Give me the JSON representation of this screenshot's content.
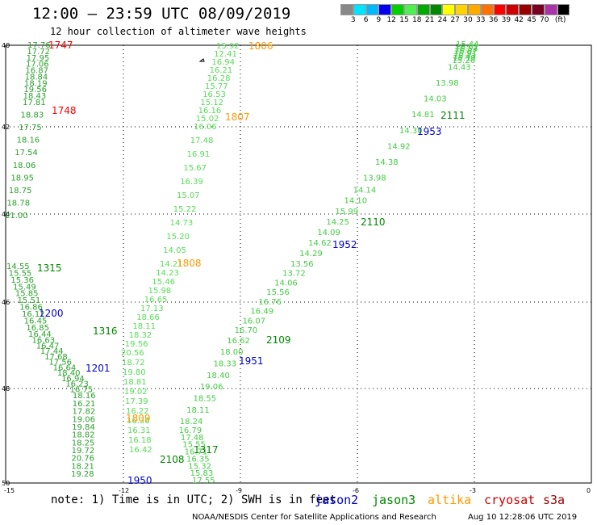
{
  "header": {
    "title": "12:00 – 23:59 UTC 08/09/2019",
    "subtitle": "12 hour collection of altimeter wave heights"
  },
  "legend": {
    "unit": "(ft)",
    "colors": [
      "#888888",
      "#00e5ff",
      "#00b8ff",
      "#0000ee",
      "#00d000",
      "#50ee50",
      "#00aa00",
      "#008800",
      "#ffff00",
      "#ffd200",
      "#ffaa00",
      "#ff7200",
      "#ff0000",
      "#cc0000",
      "#990000",
      "#770022",
      "#aa33aa",
      "#000000"
    ],
    "ticks": [
      "3",
      "6",
      "9",
      "12",
      "15",
      "18",
      "21",
      "24",
      "27",
      "30",
      "33",
      "36",
      "39",
      "42",
      "45",
      "70"
    ]
  },
  "axes": {
    "lat_labels": [
      "40",
      "42",
      "44",
      "46",
      "48",
      "50"
    ],
    "lon_labels": [
      "-15",
      "-12",
      "-9",
      "-6",
      "-3",
      "0"
    ]
  },
  "time_labels": [
    {
      "t": "1747",
      "c": "#ff0000"
    },
    {
      "t": "1748",
      "c": "#ff0000"
    },
    {
      "t": "1806",
      "c": "#ff9900"
    },
    {
      "t": "1807",
      "c": "#ff9900"
    },
    {
      "t": "1808",
      "c": "#ff9900"
    },
    {
      "t": "1809",
      "c": "#ff9900"
    },
    {
      "t": "1315",
      "c": "#008800"
    },
    {
      "t": "1316",
      "c": "#008800"
    },
    {
      "t": "1317",
      "c": "#008800"
    },
    {
      "t": "1200",
      "c": "#0000cc"
    },
    {
      "t": "1201",
      "c": "#0000cc"
    },
    {
      "t": "2111",
      "c": "#008800"
    },
    {
      "t": "2110",
      "c": "#008800"
    },
    {
      "t": "2109",
      "c": "#008800"
    },
    {
      "t": "2108",
      "c": "#008800"
    },
    {
      "t": "1953",
      "c": "#0000cc"
    },
    {
      "t": "1952",
      "c": "#0000cc"
    },
    {
      "t": "1951",
      "c": "#0000cc"
    },
    {
      "t": "1950",
      "c": "#0000cc"
    }
  ],
  "tracks": {
    "red_track": [
      "17.76",
      "17.72",
      "17.95",
      "17.06",
      "16.87",
      "18.84",
      "18.19",
      "19.56",
      "18.43",
      "17.81",
      "18.83",
      "17.75",
      "18.16",
      "17.54",
      "18.06",
      "18.95",
      "18.75",
      "18.78",
      "21.00"
    ],
    "orange_track": [
      "15.92",
      "12.41",
      "16.94",
      "16.21",
      "16.28",
      "15.77",
      "16.53",
      "15.12",
      "16.16",
      "15.02",
      "16.06",
      "17.48",
      "16.91",
      "15.67",
      "16.39",
      "15.07",
      "15.22",
      "14.73",
      "15.20",
      "14.05",
      "14.21",
      "14.23",
      "15.46",
      "15.98",
      "16.65",
      "17.13",
      "18.66",
      "18.11",
      "18.32",
      "19.56",
      "20.56",
      "18.72",
      "19.80",
      "18.81",
      "19.02",
      "17.39",
      "16.22",
      "16.36",
      "16.31",
      "16.18",
      "16.42"
    ],
    "green_track": [
      "14.55",
      "15.55",
      "15.36",
      "15.49",
      "15.85",
      "15.51",
      "16.86",
      "16.12",
      "16.45",
      "16.85",
      "16.44",
      "16.63",
      "16.47",
      "17.44",
      "17.68",
      "17.56",
      "16.64",
      "18.40",
      "16.94",
      "16.23",
      "16.75",
      "18.16",
      "16.21",
      "17.82",
      "19.06",
      "19.84",
      "18.82",
      "18.25",
      "19.72",
      "20.76",
      "18.21",
      "19.28"
    ],
    "green_track_2": [
      "17.55",
      "15.83",
      "15.32",
      "16.35",
      "16.71",
      "15.55",
      "17.48",
      "16.79",
      "18.24",
      "18.11",
      "18.55",
      "19.06",
      "18.40",
      "18.33",
      "18.00",
      "16.62",
      "16.70",
      "16.07",
      "16.49",
      "16.76",
      "15.56",
      "14.06",
      "13.72",
      "13.56",
      "14.29",
      "14.62",
      "14.09",
      "14.25",
      "15.99",
      "14.10",
      "14.14",
      "13.98",
      "14.38",
      "14.92",
      "14.30",
      "14.81",
      "14.03",
      "13.98",
      "14.43",
      "15.26",
      "15.19",
      "15.42",
      "15.91",
      "15.67",
      "16.53",
      "16.61",
      "15.44"
    ]
  },
  "note": "note: 1) Time is in UTC; 2) SWH is in feet",
  "satellites": [
    {
      "name": "jason2",
      "color": "#0000cc"
    },
    {
      "name": "jason3",
      "color": "#008800"
    },
    {
      "name": "altika",
      "color": "#ff9900"
    },
    {
      "name": "cryosat",
      "color": "#cc0000"
    },
    {
      "name": "s3a",
      "color": "#990000"
    }
  ],
  "footer": {
    "credit": "NOAA/NESDIS Center for Satellite Applications and Research",
    "timestamp": "Aug 10 12:28:06 UTC 2019"
  }
}
